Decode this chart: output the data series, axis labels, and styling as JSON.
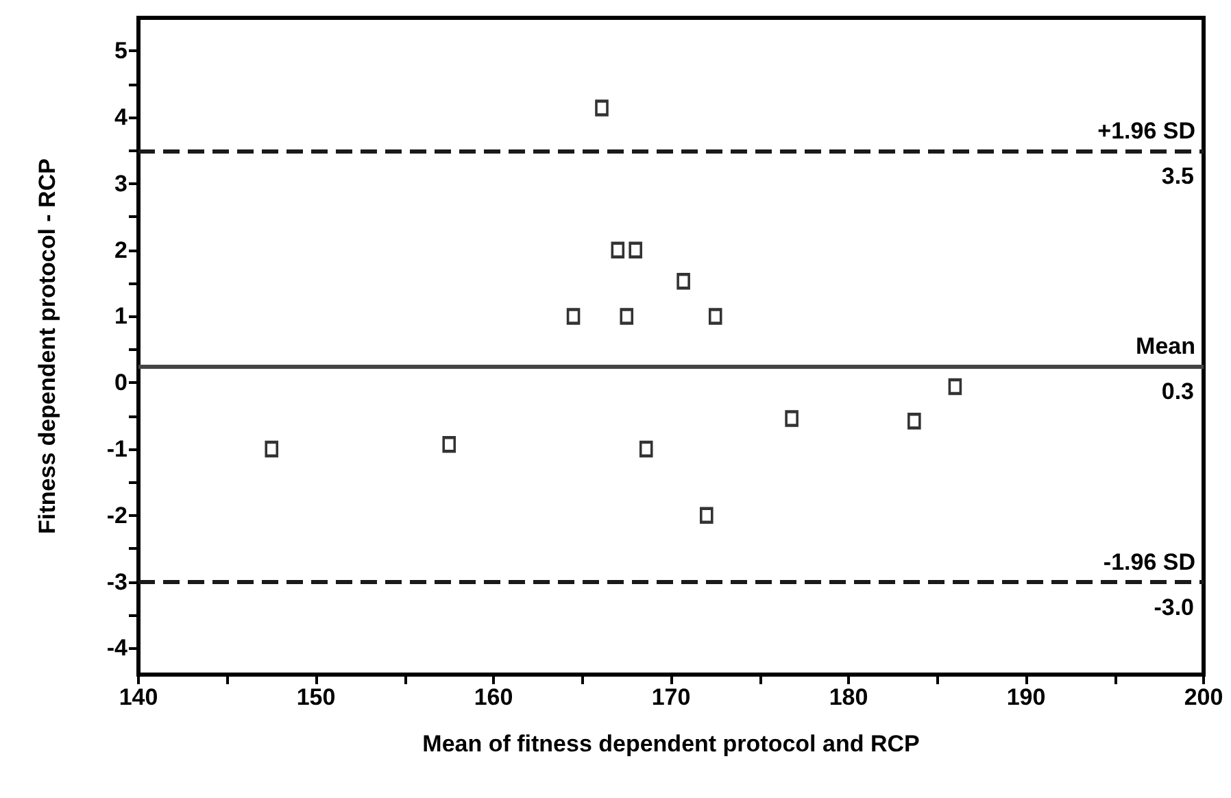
{
  "chart_data": {
    "type": "scatter",
    "xlabel": "Mean of fitness dependent protocol and RCP",
    "ylabel": "Fitness dependent protocol - RCP",
    "x": [
      147.5,
      157.5,
      164.5,
      166.1,
      167.0,
      168.0,
      167.5,
      168.6,
      170.7,
      172.5,
      172.0,
      176.8,
      183.7,
      186.0
    ],
    "series": [
      {
        "color": "#000000",
        "values": [
          -1.0,
          -0.93,
          1.0,
          4.14,
          2.0,
          2.0,
          1.0,
          -1.0,
          1.53,
          1.0,
          -2.0,
          -0.54,
          -0.58,
          -0.06
        ]
      }
    ],
    "marker": "square",
    "grid": false,
    "xlim": [
      140,
      200
    ],
    "xticks": [
      140,
      {
        "value": 145,
        "label": null
      },
      150,
      {
        "value": 155,
        "label": null
      },
      160,
      {
        "value": 165,
        "label": null
      },
      170,
      {
        "value": 175,
        "label": null
      },
      180,
      {
        "value": 185,
        "label": null
      },
      190,
      {
        "value": 195,
        "label": null
      },
      200
    ],
    "ylim": [
      -4.4,
      5.5
    ],
    "yticks": [
      -4,
      {
        "value": -3.5,
        "label": null
      },
      -3,
      {
        "value": -2.5,
        "label": null
      },
      -2,
      {
        "value": -1.5,
        "label": null
      },
      -1,
      {
        "value": -0.5,
        "label": null
      },
      0,
      {
        "value": 0.5,
        "label": null
      },
      1,
      {
        "value": 1.5,
        "label": null
      },
      2,
      {
        "value": 2.5,
        "label": null
      },
      3,
      {
        "value": 3.5,
        "label": null
      },
      4,
      {
        "value": 4.5,
        "label": null
      },
      5
    ],
    "ref_lines": [
      {
        "axis": "y",
        "value": 3.5,
        "label": "+1.96 SD",
        "line_style": "dashed",
        "color": "#1a1a1a"
      },
      {
        "axis": "y",
        "value": 0.25,
        "label": "Mean",
        "line_style": "solid",
        "color": "#444444"
      },
      {
        "axis": "y",
        "value": -3.0,
        "label": "-1.96 SD",
        "line_style": "dashed",
        "color": "#1a1a1a"
      }
    ],
    "annotations": [
      {
        "text": "3.5",
        "y": 3.5
      },
      {
        "text": "0.3",
        "y": 0.25
      },
      {
        "text": "-3.0",
        "y": -3.0
      }
    ]
  }
}
